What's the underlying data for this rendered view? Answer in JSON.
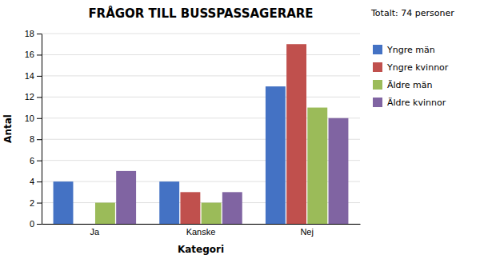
{
  "chart_data": {
    "type": "bar",
    "title": "FRÅGOR TILL BUSSPASSAGERARE",
    "subtitle": "Totalt: 74 personer",
    "xlabel": "Kategori",
    "ylabel": "Antal",
    "categories": [
      "Ja",
      "Kanske",
      "Nej"
    ],
    "series": [
      {
        "name": "Yngre män",
        "color": "#4472C4",
        "values": [
          4,
          4,
          13
        ]
      },
      {
        "name": "Yngre kvinnor",
        "color": "#C0504D",
        "values": [
          0,
          3,
          17
        ]
      },
      {
        "name": "Äldre män",
        "color": "#9BBB59",
        "values": [
          2,
          2,
          11
        ]
      },
      {
        "name": "Äldre kvinnor",
        "color": "#8064A2",
        "values": [
          5,
          3,
          10
        ]
      }
    ],
    "ylim": [
      0,
      18
    ],
    "yticks": [
      0,
      2,
      4,
      6,
      8,
      10,
      12,
      14,
      16,
      18
    ],
    "grid": true,
    "legend": "right"
  }
}
